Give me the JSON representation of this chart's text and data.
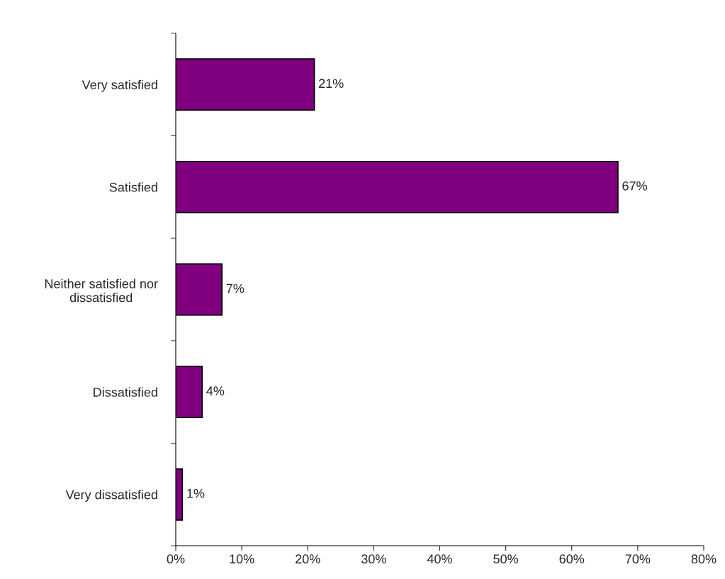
{
  "chart_data": {
    "type": "bar",
    "orientation": "horizontal",
    "categories": [
      "Very satisfied",
      "Satisfied",
      "Neither satisfied nor\ndissatisfied",
      "Dissatisfied",
      "Very dissatisfied"
    ],
    "values": [
      21,
      67,
      7,
      4,
      1
    ],
    "value_labels": [
      "21%",
      "67%",
      "7%",
      "4%",
      "1%"
    ],
    "color": "#800080",
    "xlim": [
      0,
      80
    ],
    "xticks": [
      {
        "value": 0,
        "label": "0%"
      },
      {
        "value": 10,
        "label": "10%"
      },
      {
        "value": 20,
        "label": "20%"
      },
      {
        "value": 30,
        "label": "30%"
      },
      {
        "value": 40,
        "label": "40%"
      },
      {
        "value": 50,
        "label": "50%"
      },
      {
        "value": 60,
        "label": "60%"
      },
      {
        "value": 70,
        "label": "70%"
      },
      {
        "value": 80,
        "label": "80%"
      }
    ],
    "grid": false
  }
}
